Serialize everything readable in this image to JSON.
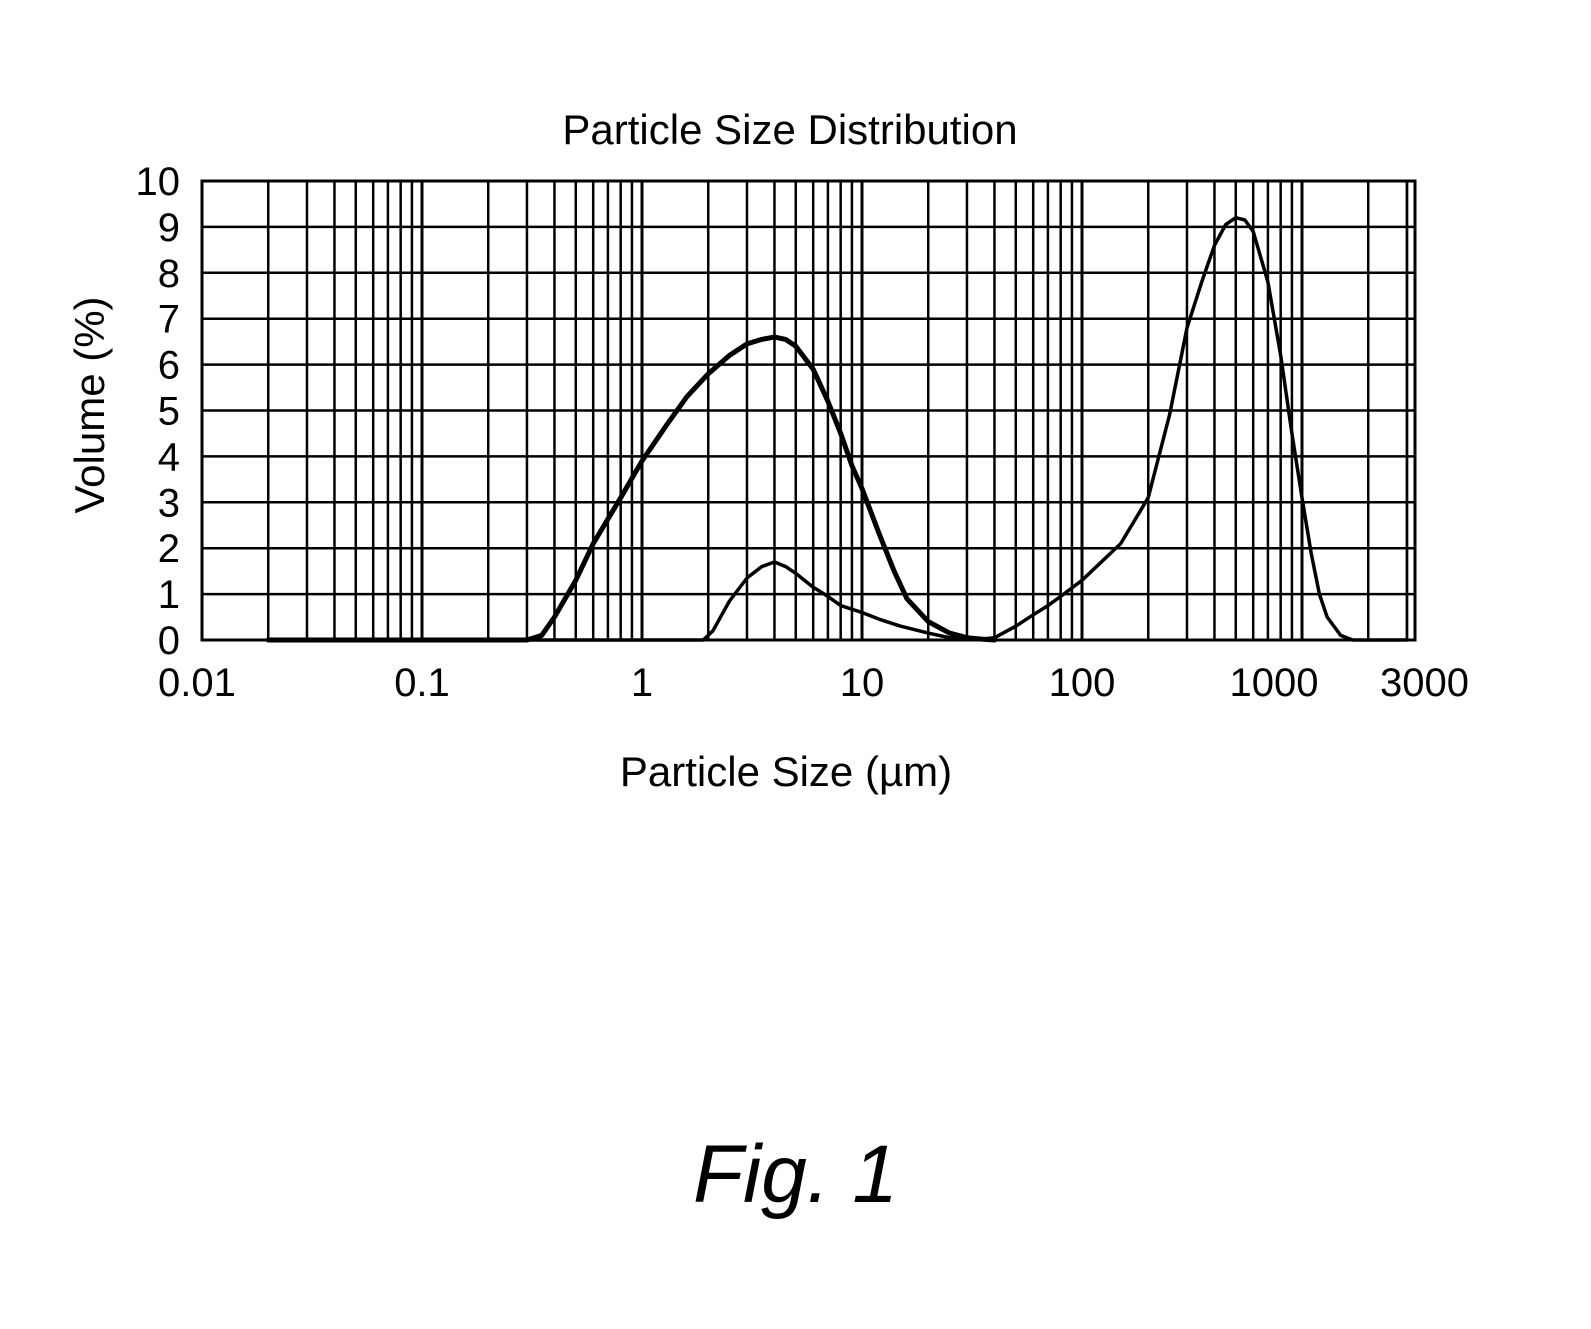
{
  "chart_data": {
    "type": "line",
    "title": "Particle Size Distribution",
    "xlabel": "Particle Size (µm)",
    "ylabel": "Volume (%)",
    "x_scale": "log",
    "xlim": [
      0.01,
      3000
    ],
    "ylim": [
      0,
      10
    ],
    "x_ticks": [
      0.01,
      0.1,
      1,
      10,
      100,
      1000,
      3000
    ],
    "x_tick_labels": [
      "0.01",
      "0.1",
      "1",
      "10",
      "100",
      "1000",
      "3000"
    ],
    "y_ticks": [
      0,
      1,
      2,
      3,
      4,
      5,
      6,
      7,
      8,
      9,
      10
    ],
    "y_tick_labels": [
      "0",
      "1",
      "2",
      "3",
      "4",
      "5",
      "6",
      "7",
      "8",
      "9",
      "10"
    ],
    "grid": true,
    "legend": "none",
    "series": [
      {
        "x": [
          0.02,
          0.3,
          0.35,
          0.4,
          0.5,
          0.6,
          0.8,
          1.0,
          1.3,
          1.6,
          2.0,
          2.5,
          3.0,
          3.5,
          4.0,
          4.5,
          5.0,
          6.0,
          7.0,
          8.0,
          9.0,
          10,
          12,
          14,
          16,
          20,
          25,
          30,
          35,
          40
        ],
        "y": [
          0,
          0,
          0.1,
          0.5,
          1.3,
          2.1,
          3.1,
          3.9,
          4.7,
          5.3,
          5.8,
          6.2,
          6.45,
          6.55,
          6.6,
          6.55,
          6.4,
          5.9,
          5.2,
          4.5,
          3.8,
          3.3,
          2.3,
          1.5,
          0.9,
          0.4,
          0.15,
          0.05,
          0.02,
          0
        ]
      },
      {
        "x": [
          0.02,
          1.5,
          1.9,
          2.1,
          2.5,
          3.0,
          3.5,
          4.0,
          4.5,
          5.0,
          6.0,
          7.0,
          8.0,
          10,
          12,
          15,
          20,
          25,
          30,
          35,
          40,
          50,
          60,
          70,
          80,
          100,
          150,
          200,
          250,
          300,
          350,
          400,
          450,
          500,
          550,
          600,
          700,
          800,
          900,
          1000,
          1100,
          1200,
          1300,
          1500,
          1700,
          3000
        ],
        "y": [
          0,
          0,
          0,
          0.2,
          0.85,
          1.35,
          1.6,
          1.7,
          1.6,
          1.45,
          1.15,
          0.95,
          0.75,
          0.6,
          0.45,
          0.3,
          0.15,
          0.05,
          0.02,
          0.02,
          0.05,
          0.3,
          0.55,
          0.75,
          0.95,
          1.3,
          2.1,
          3.1,
          4.9,
          6.8,
          7.8,
          8.6,
          9.05,
          9.2,
          9.15,
          8.9,
          7.8,
          6.2,
          4.5,
          3.1,
          1.9,
          1.0,
          0.5,
          0.1,
          0,
          0
        ]
      }
    ]
  },
  "figure_caption": "Fig. 1"
}
